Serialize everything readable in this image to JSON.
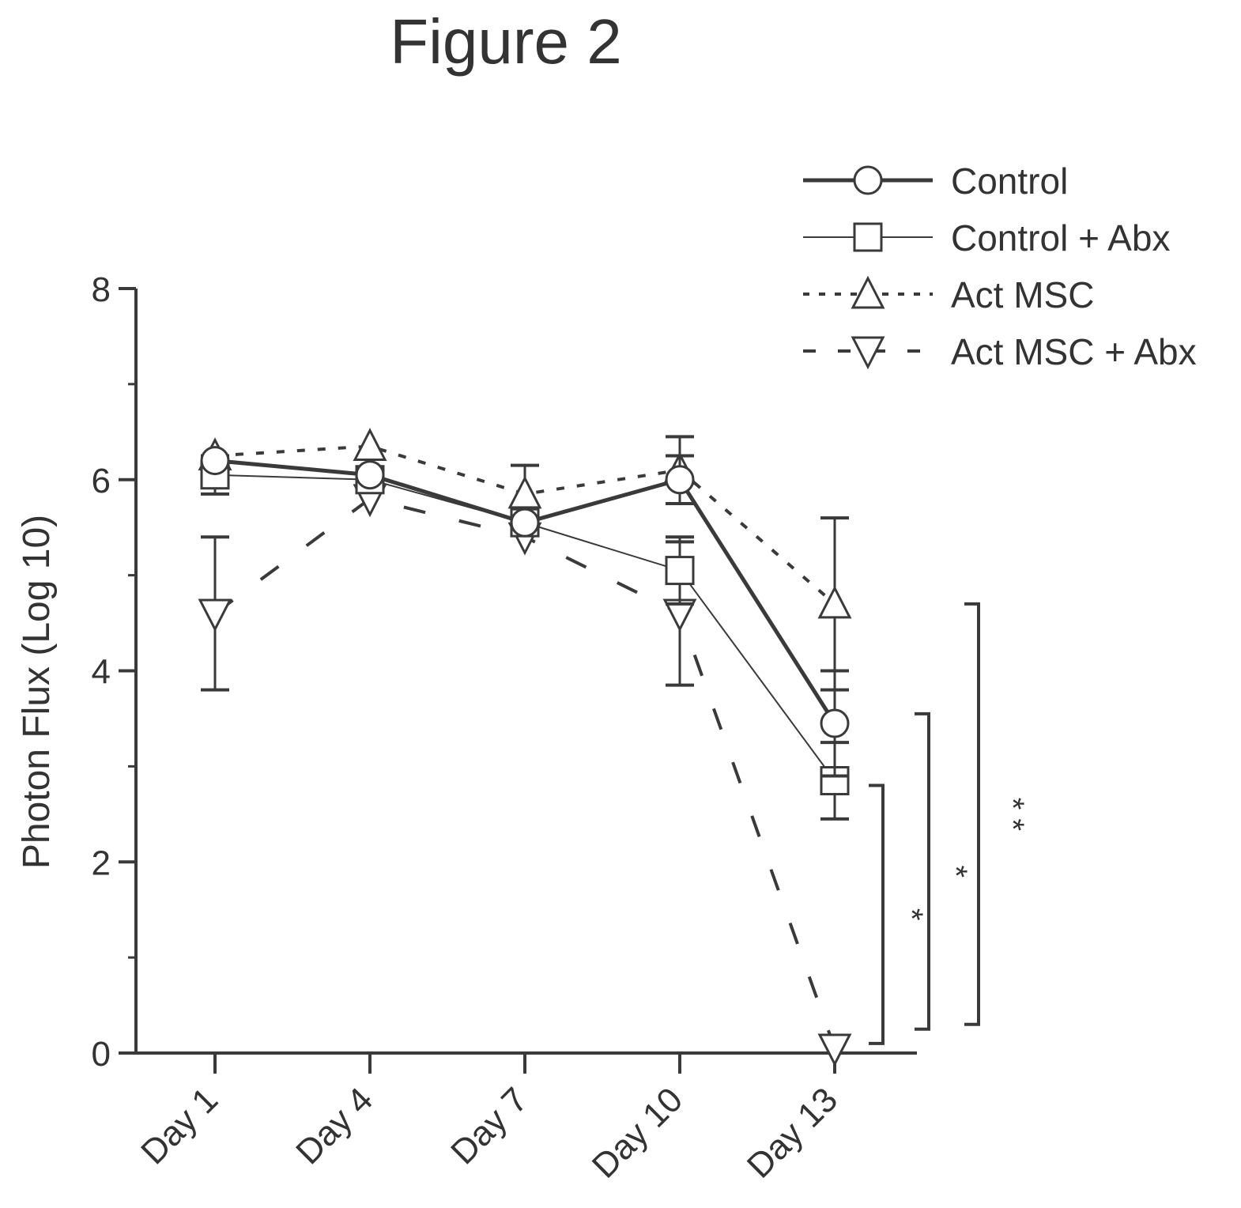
{
  "figure_label": "Figure 2",
  "chart_data": {
    "type": "line",
    "title": "",
    "xlabel": "",
    "ylabel": "Photon Flux (Log 10)",
    "categories": [
      "Day 1",
      "Day 4",
      "Day 7",
      "Day 10",
      "Day 13"
    ],
    "ylim": [
      0,
      8
    ],
    "yticks": [
      "0",
      "2",
      "4",
      "6",
      "8"
    ],
    "grid": false,
    "legend_position": "top-right",
    "series": [
      {
        "name": "Control",
        "marker": "circle",
        "line": "solid-thick",
        "values": [
          6.2,
          6.05,
          5.55,
          6.0,
          3.45
        ],
        "errors": [
          0.0,
          0.0,
          0.0,
          0.25,
          0.55
        ]
      },
      {
        "name": "Control + Abx",
        "marker": "square",
        "line": "solid-thin",
        "values": [
          6.05,
          6.0,
          5.55,
          5.05,
          2.85
        ],
        "errors": [
          0.2,
          0.0,
          0.0,
          0.35,
          0.4
        ]
      },
      {
        "name": "Act MSC",
        "marker": "triangle-up",
        "line": "dotted",
        "values": [
          6.25,
          6.35,
          5.85,
          6.1,
          4.7
        ],
        "errors": [
          0.0,
          0.0,
          0.3,
          0.35,
          0.9
        ]
      },
      {
        "name": "Act MSC + Abx",
        "marker": "triangle-down",
        "line": "dashed",
        "values": [
          4.6,
          5.8,
          5.4,
          4.6,
          0.05
        ],
        "errors": [
          0.8,
          0.0,
          0.0,
          0.75,
          0.0
        ]
      }
    ],
    "significance": [
      {
        "label": "*",
        "from": 0.1,
        "to": 2.8
      },
      {
        "label": "*",
        "from": 0.25,
        "to": 3.55
      },
      {
        "label": "* *",
        "from": 0.3,
        "to": 4.7
      }
    ]
  }
}
